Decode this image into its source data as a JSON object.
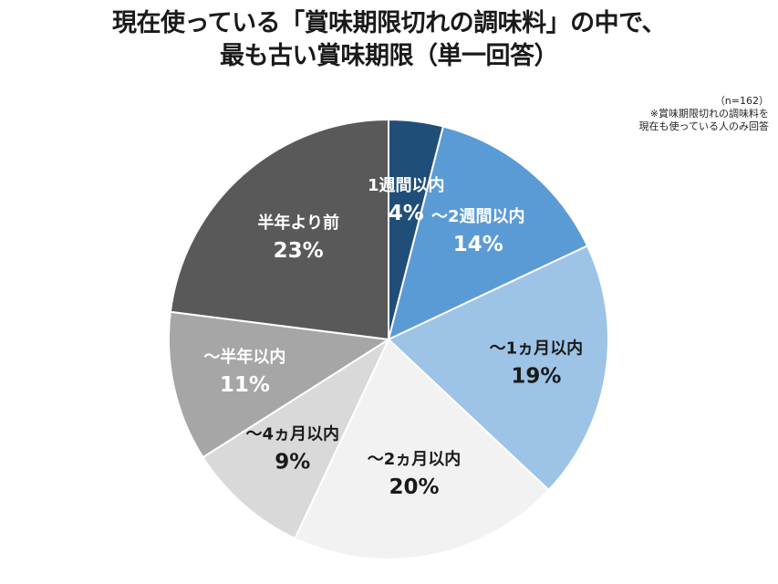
{
  "title": {
    "line1": "現在使っている「賞味期限切れの調味料」の中で、",
    "line2": "最も古い賞味期限（単一回答）"
  },
  "note": {
    "n": "（n=162）",
    "line1": "※賞味期限切れの調味料を",
    "line2": "現在も使っている人のみ回答"
  },
  "chart_data": {
    "type": "pie",
    "title": "現在使っている「賞味期限切れの調味料」の中で、最も古い賞味期限（単一回答）",
    "n": 162,
    "categories": [
      "1週間以内",
      "～2週間以内",
      "～1ヵ月以内",
      "～2ヵ月以内",
      "～4ヵ月以内",
      "～半年以内",
      "半年より前"
    ],
    "values": [
      4,
      14,
      19,
      20,
      9,
      11,
      23
    ],
    "value_labels": [
      "4%",
      "14%",
      "19%",
      "20%",
      "9%",
      "11%",
      "23%"
    ],
    "colors": [
      "#1f4e79",
      "#5b9bd5",
      "#9dc3e6",
      "#f2f2f2",
      "#d9d9d9",
      "#a6a6a6",
      "#595959"
    ],
    "label_colors": [
      "#ffffff",
      "#ffffff",
      "#1a1a1a",
      "#1a1a1a",
      "#1a1a1a",
      "#ffffff",
      "#ffffff"
    ],
    "start_angle_deg": 0,
    "direction": "clockwise"
  }
}
